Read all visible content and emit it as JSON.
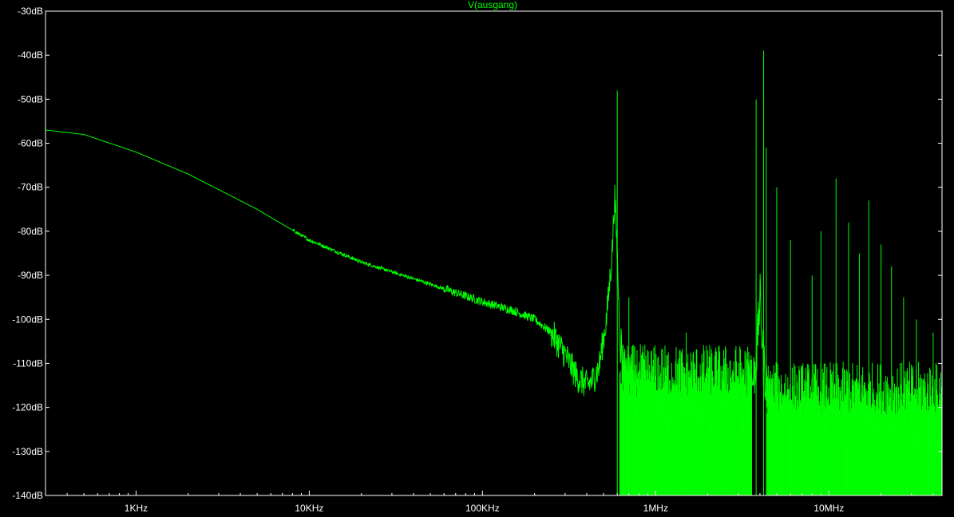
{
  "chart_data": {
    "type": "line",
    "title": "V(ausgang)",
    "xlabel": "",
    "ylabel": "",
    "xscale": "log",
    "xlim": [
      300,
      45000000
    ],
    "ylim": [
      -140,
      -30
    ],
    "grid": false,
    "colors": {
      "background": "#000000",
      "trace": "#00ff00",
      "axes": "#ffffff",
      "ticks": "#ffffff"
    },
    "x_ticks": [
      {
        "value": 1000,
        "label": "1KHz"
      },
      {
        "value": 10000,
        "label": "10KHz"
      },
      {
        "value": 100000,
        "label": "100KHz"
      },
      {
        "value": 1000000,
        "label": "1MHz"
      },
      {
        "value": 10000000,
        "label": "10MHz"
      }
    ],
    "y_ticks": [
      {
        "value": -30,
        "label": "-30dB"
      },
      {
        "value": -40,
        "label": "-40dB"
      },
      {
        "value": -50,
        "label": "-50dB"
      },
      {
        "value": -60,
        "label": "-60dB"
      },
      {
        "value": -70,
        "label": "-70dB"
      },
      {
        "value": -80,
        "label": "-80dB"
      },
      {
        "value": -90,
        "label": "-90dB"
      },
      {
        "value": -100,
        "label": "-100dB"
      },
      {
        "value": -110,
        "label": "-110dB"
      },
      {
        "value": -120,
        "label": "-120dB"
      },
      {
        "value": -130,
        "label": "-130dB"
      },
      {
        "value": -140,
        "label": "-140dB"
      }
    ],
    "series": [
      {
        "name": "V(ausgang)",
        "x": [
          300,
          500,
          1000,
          2000,
          5000,
          10000,
          20000,
          50000,
          100000,
          150000,
          200000,
          250000,
          300000,
          350000,
          400000,
          430000,
          470000,
          520000,
          560000,
          580000,
          600000,
          620000,
          650000,
          700000,
          800000,
          1000000,
          2000000,
          3000000,
          3500000,
          3800000,
          4000000,
          4200000,
          4500000,
          5000000,
          10000000,
          20000000,
          45000000
        ],
        "y": [
          -57,
          -58,
          -62,
          -67,
          -75,
          -82,
          -87,
          -92,
          -96,
          -98,
          -100,
          -103,
          -108,
          -113,
          -115,
          -114,
          -111,
          -100,
          -85,
          -72,
          -85,
          -103,
          -111,
          -113,
          -118,
          -120,
          -121,
          -120,
          -117,
          -110,
          -95,
          -110,
          -118,
          -121,
          -123,
          -125,
          -128
        ]
      }
    ],
    "peaks": [
      {
        "x": 600000,
        "y": -48
      },
      {
        "x": 700000,
        "y": -95
      },
      {
        "x": 1500000,
        "y": -103
      },
      {
        "x": 2000000,
        "y": -107
      },
      {
        "x": 2500000,
        "y": -110
      },
      {
        "x": 3800000,
        "y": -50
      },
      {
        "x": 4200000,
        "y": -39
      },
      {
        "x": 4350000,
        "y": -61
      },
      {
        "x": 5000000,
        "y": -70
      },
      {
        "x": 6000000,
        "y": -82
      },
      {
        "x": 8000000,
        "y": -90
      },
      {
        "x": 9000000,
        "y": -80
      },
      {
        "x": 11000000,
        "y": -68
      },
      {
        "x": 13000000,
        "y": -78
      },
      {
        "x": 15000000,
        "y": -85
      },
      {
        "x": 17000000,
        "y": -73
      },
      {
        "x": 20000000,
        "y": -83
      },
      {
        "x": 23000000,
        "y": -88
      },
      {
        "x": 27000000,
        "y": -95
      },
      {
        "x": 32000000,
        "y": -100
      },
      {
        "x": 40000000,
        "y": -103
      }
    ],
    "noise_bands": [
      {
        "x_from": 620000,
        "x_to": 3600000,
        "y_top": -114,
        "y_bottom": -140
      },
      {
        "x_from": 4400000,
        "x_to": 45000000,
        "y_top": -118,
        "y_bottom": -140
      }
    ]
  }
}
